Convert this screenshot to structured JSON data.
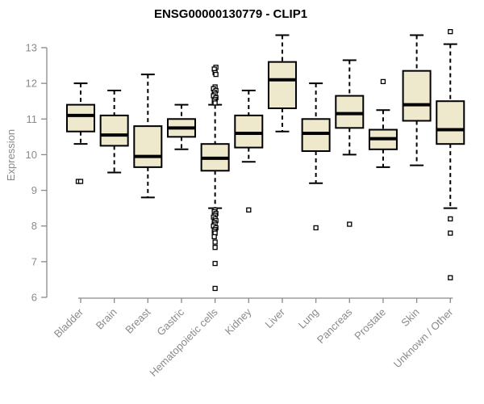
{
  "chart_data": {
    "type": "boxplot",
    "title": "ENSG00000130779 - CLIP1",
    "ylabel": "Expression",
    "xlabel": "",
    "ylim": [
      6,
      13
    ],
    "yticks": [
      6,
      7,
      8,
      9,
      10,
      11,
      12,
      13
    ],
    "grid": false,
    "legend": "none",
    "categories": [
      "Bladder",
      "Brain",
      "Breast",
      "Gastric",
      "Hematopoietic cells",
      "Kidney",
      "Liver",
      "Lung",
      "Pancreas",
      "Prostate",
      "Skin",
      "Unknown / Other"
    ],
    "boxes": [
      {
        "category": "Bladder",
        "low": 10.3,
        "q1": 10.65,
        "median": 11.1,
        "q3": 11.4,
        "high": 12.0,
        "outliers": [
          [
            9.25,
            -3
          ],
          [
            9.25,
            0
          ]
        ]
      },
      {
        "category": "Brain",
        "low": 9.5,
        "q1": 10.25,
        "median": 10.55,
        "q3": 11.1,
        "high": 11.8,
        "outliers": []
      },
      {
        "category": "Breast",
        "low": 8.8,
        "q1": 9.65,
        "median": 9.95,
        "q3": 10.8,
        "high": 12.25,
        "outliers": []
      },
      {
        "category": "Gastric",
        "low": 10.15,
        "q1": 10.5,
        "median": 10.75,
        "q3": 11.0,
        "high": 11.4,
        "outliers": []
      },
      {
        "category": "Hematopoietic cells",
        "low": 8.5,
        "q1": 9.55,
        "median": 9.9,
        "q3": 10.3,
        "high": 11.4,
        "outliers": [
          [
            12.45,
            1
          ],
          [
            12.4,
            -1
          ],
          [
            12.3,
            0
          ],
          [
            12.25,
            1
          ],
          [
            11.9,
            0
          ],
          [
            11.85,
            -2
          ],
          [
            11.8,
            1
          ],
          [
            11.75,
            -1
          ],
          [
            11.7,
            0
          ],
          [
            11.65,
            -2
          ],
          [
            11.6,
            1
          ],
          [
            11.55,
            0
          ],
          [
            11.5,
            -1
          ],
          [
            11.45,
            0
          ],
          [
            8.45,
            0
          ],
          [
            8.4,
            -1
          ],
          [
            8.35,
            1
          ],
          [
            8.3,
            0
          ],
          [
            8.25,
            -2
          ],
          [
            8.2,
            0
          ],
          [
            8.15,
            1
          ],
          [
            8.1,
            -1
          ],
          [
            8.05,
            0
          ],
          [
            8.0,
            -2
          ],
          [
            7.95,
            1
          ],
          [
            7.9,
            0
          ],
          [
            7.85,
            -1
          ],
          [
            7.8,
            0
          ],
          [
            7.7,
            -1
          ],
          [
            7.55,
            0
          ],
          [
            7.4,
            0
          ],
          [
            6.95,
            0
          ],
          [
            6.25,
            0
          ]
        ]
      },
      {
        "category": "Kidney",
        "low": 9.8,
        "q1": 10.2,
        "median": 10.6,
        "q3": 11.1,
        "high": 11.8,
        "outliers": [
          [
            8.45,
            0
          ]
        ]
      },
      {
        "category": "Liver",
        "low": 10.65,
        "q1": 11.3,
        "median": 12.1,
        "q3": 12.6,
        "high": 13.35,
        "outliers": []
      },
      {
        "category": "Lung",
        "low": 9.2,
        "q1": 10.1,
        "median": 10.6,
        "q3": 11.0,
        "high": 12.0,
        "outliers": [
          [
            7.95,
            0
          ]
        ]
      },
      {
        "category": "Pancreas",
        "low": 10.0,
        "q1": 10.75,
        "median": 11.15,
        "q3": 11.65,
        "high": 12.65,
        "outliers": [
          [
            8.05,
            0
          ]
        ]
      },
      {
        "category": "Prostate",
        "low": 9.65,
        "q1": 10.15,
        "median": 10.45,
        "q3": 10.7,
        "high": 11.25,
        "outliers": [
          [
            12.05,
            0
          ]
        ]
      },
      {
        "category": "Skin",
        "low": 9.7,
        "q1": 10.95,
        "median": 11.4,
        "q3": 12.35,
        "high": 13.35,
        "outliers": []
      },
      {
        "category": "Unknown / Other",
        "low": 8.5,
        "q1": 10.3,
        "median": 10.7,
        "q3": 11.5,
        "high": 13.1,
        "outliers": [
          [
            13.45,
            0
          ],
          [
            8.2,
            0
          ],
          [
            7.8,
            0
          ],
          [
            6.55,
            0
          ]
        ]
      }
    ],
    "style": {
      "box_fill": "#EEE8CD",
      "box_stroke": "#000000",
      "median_color": "#000000",
      "outlier_fill": "#ffffff",
      "axis_color": "#8a8a8a",
      "title_color": "#000000",
      "background": "#ffffff"
    }
  }
}
